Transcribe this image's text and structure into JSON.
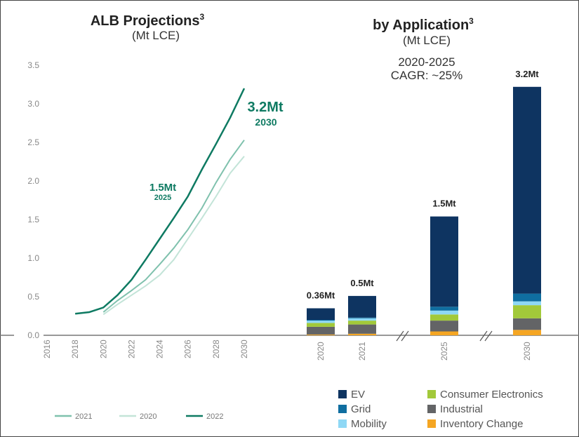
{
  "chart_data": [
    {
      "type": "line",
      "title": "ALB Projections",
      "title_superscript": "3",
      "subtitle": "(Mt LCE)",
      "ylim": [
        0,
        3.5
      ],
      "yticks": [
        "0.0",
        "0.5",
        "1.0",
        "1.5",
        "2.0",
        "2.5",
        "3.0",
        "3.5"
      ],
      "xlim": [
        2016,
        2030
      ],
      "xticks": [
        "2016",
        "2018",
        "2020",
        "2022",
        "2024",
        "2026",
        "2028",
        "2030"
      ],
      "grid": false,
      "legend_position": "bottom",
      "series": [
        {
          "name": "2021",
          "color": "#7fc1ad",
          "x": [
            2020,
            2021,
            2022,
            2023,
            2024,
            2025,
            2026,
            2027,
            2028,
            2029,
            2030
          ],
          "y": [
            0.3,
            0.45,
            0.58,
            0.72,
            0.92,
            1.13,
            1.37,
            1.65,
            1.98,
            2.28,
            2.53
          ]
        },
        {
          "name": "2020",
          "color": "#c3e4d8",
          "x": [
            2020,
            2021,
            2022,
            2023,
            2024,
            2025,
            2026,
            2027,
            2028,
            2029,
            2030
          ],
          "y": [
            0.27,
            0.4,
            0.52,
            0.64,
            0.78,
            0.98,
            1.25,
            1.52,
            1.8,
            2.1,
            2.32
          ]
        },
        {
          "name": "2022",
          "color": "#0e7a62",
          "x": [
            2018,
            2019,
            2020,
            2021,
            2022,
            2023,
            2024,
            2025,
            2026,
            2027,
            2028,
            2029,
            2030
          ],
          "y": [
            0.28,
            0.3,
            0.36,
            0.52,
            0.72,
            0.98,
            1.25,
            1.52,
            1.8,
            2.15,
            2.48,
            2.82,
            3.2
          ]
        }
      ],
      "annotations": [
        {
          "text": "1.5Mt",
          "subtext": "2025"
        },
        {
          "text": "3.2Mt",
          "subtext": "2030"
        }
      ]
    },
    {
      "type": "bar",
      "stacked": true,
      "title": "by Application",
      "title_superscript": "3",
      "subtitle": "(Mt LCE)",
      "note_line1": "2020-2025",
      "note_line2": "CAGR: ~25%",
      "categories": [
        "2020",
        "2021",
        "2025",
        "2030"
      ],
      "axis_breaks": [
        "2021-2025",
        "2025-2030"
      ],
      "totals": [
        "0.36Mt",
        "0.5Mt",
        "1.5Mt",
        "3.2Mt"
      ],
      "legend_position": "bottom",
      "series": [
        {
          "name": "Inventory Change",
          "color": "#f5a623",
          "values": [
            0.01,
            0.02,
            0.05,
            0.07
          ]
        },
        {
          "name": "Industrial",
          "color": "#636466",
          "values": [
            0.1,
            0.12,
            0.14,
            0.15
          ]
        },
        {
          "name": "Consumer Electronics",
          "color": "#a2c93a",
          "values": [
            0.05,
            0.05,
            0.08,
            0.17
          ]
        },
        {
          "name": "Mobility",
          "color": "#8fd8f5",
          "values": [
            0.03,
            0.03,
            0.05,
            0.05
          ]
        },
        {
          "name": "Grid",
          "color": "#0f6ea0",
          "values": [
            0.01,
            0.01,
            0.05,
            0.1
          ]
        },
        {
          "name": "EV",
          "color": "#0e3461",
          "values": [
            0.15,
            0.28,
            1.17,
            2.68
          ]
        }
      ]
    }
  ]
}
